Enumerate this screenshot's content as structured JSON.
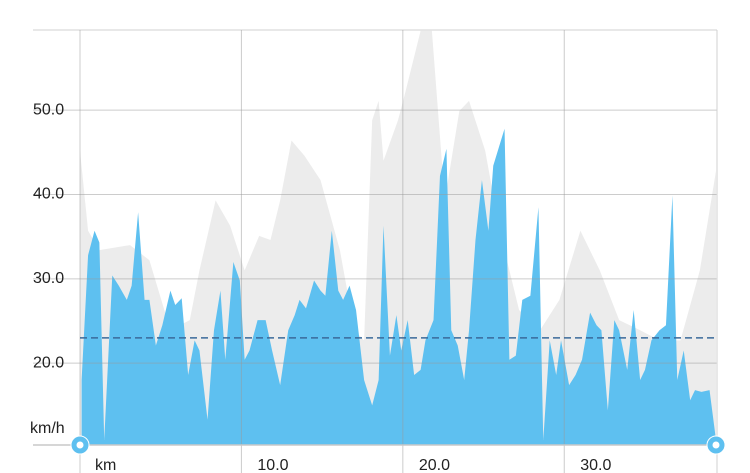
{
  "chart_data": {
    "type": "area",
    "x_label": "km",
    "y_label": "km/h",
    "xlim": [
      0,
      39.4
    ],
    "ylim": [
      10.3,
      59.5
    ],
    "xticks": [
      0,
      {
        "value": 10,
        "label": "10.0"
      },
      {
        "value": 20,
        "label": "20.0"
      },
      {
        "value": 30,
        "label": "30.0"
      }
    ],
    "yticks": [
      {
        "value": 20,
        "label": "20.0"
      },
      {
        "value": 30,
        "label": "30.0"
      },
      {
        "value": 40,
        "label": "40.0"
      },
      {
        "value": 50,
        "label": "50.0"
      }
    ],
    "grid": true,
    "average": 23.0,
    "average_color": "#3a6a9a",
    "series": [
      {
        "color": "#ececec",
        "x": [
          0,
          0.5,
          1.2,
          3.1,
          4.3,
          5.6,
          6.8,
          7.4,
          8.4,
          9.3,
          10.2,
          11.1,
          11.8,
          12.4,
          13.1,
          13.9,
          14.9,
          16.1,
          17.0,
          17.6,
          18.1,
          18.5,
          18.8,
          19.7,
          20.1,
          21.1,
          21.8,
          22.6,
          23.5,
          24.1,
          25.1,
          26.0,
          27.2,
          28.5,
          29.7,
          31.0,
          32.2,
          33.4,
          34.7,
          35.9,
          37.2,
          38.4,
          39.4
        ],
        "values": [
          45.2,
          35.7,
          33.4,
          34,
          32.2,
          23.9,
          25.1,
          31,
          39.3,
          36.3,
          31,
          35.1,
          34.6,
          39.3,
          46.4,
          44.6,
          41.7,
          33.4,
          23.9,
          22.7,
          48.8,
          51.1,
          44,
          48.8,
          51.7,
          59.4,
          59.4,
          39.3,
          49.9,
          51.1,
          45.2,
          35.7,
          26.3,
          23.9,
          27.5,
          35.7,
          31,
          25.1,
          23.9,
          22.7,
          22.7,
          31,
          42.8
        ]
      },
      {
        "color": "#5ec0f0",
        "x": [
          0.1,
          0.5,
          0.9,
          1.2,
          1.5,
          2.0,
          2.4,
          2.9,
          3.2,
          3.6,
          4.0,
          4.3,
          4.7,
          5.1,
          5.6,
          5.9,
          6.3,
          6.7,
          7.1,
          7.4,
          7.9,
          8.3,
          8.7,
          9.0,
          9.5,
          9.9,
          10.2,
          10.5,
          11.0,
          11.5,
          11.9,
          12.4,
          12.9,
          13.3,
          13.6,
          14.0,
          14.5,
          14.9,
          15.2,
          15.6,
          16.0,
          16.3,
          16.7,
          17.1,
          17.6,
          18.1,
          18.5,
          18.8,
          19.2,
          19.6,
          19.9,
          20.3,
          20.7,
          21.1,
          21.4,
          21.9,
          22.3,
          22.7,
          23.0,
          23.4,
          23.8,
          24.1,
          24.5,
          24.9,
          25.3,
          25.6,
          26.3,
          26.6,
          27.0,
          27.4,
          27.9,
          28.4,
          28.7,
          29.1,
          29.5,
          29.8,
          30.3,
          30.7,
          31.1,
          31.6,
          32.0,
          32.3,
          32.7,
          33.1,
          33.4,
          33.9,
          34.3,
          34.7,
          35.0,
          35.4,
          35.9,
          36.3,
          36.7,
          37.0,
          37.4,
          37.8,
          38.1,
          38.5,
          39.0,
          39.4
        ],
        "values": [
          18,
          32.8,
          35.7,
          34.3,
          10.9,
          30.4,
          29.2,
          27.5,
          29.2,
          37.9,
          27.5,
          27.5,
          22.1,
          24.5,
          28.6,
          26.9,
          27.7,
          18.6,
          22.7,
          21.5,
          13.3,
          23.9,
          28.6,
          20.4,
          32,
          29.8,
          20.4,
          21.5,
          25.1,
          25.1,
          21.5,
          17.4,
          23.9,
          25.7,
          27.5,
          26.5,
          29.8,
          28.6,
          28.0,
          35.7,
          28.6,
          27.5,
          29.2,
          26.3,
          18,
          15,
          18,
          36.3,
          20.9,
          25.7,
          21.5,
          25.1,
          18.6,
          19.2,
          22.7,
          25.1,
          42.2,
          45.4,
          23.9,
          22.1,
          18,
          23.9,
          34.6,
          41.7,
          35.7,
          43.4,
          47.8,
          20.4,
          20.9,
          27.5,
          28,
          38.5,
          10.9,
          22.7,
          18.6,
          22.7,
          17.4,
          18.6,
          20.4,
          26,
          24.5,
          23.9,
          14.4,
          25.1,
          23.9,
          19.2,
          26.3,
          18,
          19.2,
          22.7,
          23.9,
          24.5,
          39.9,
          18,
          21.5,
          15.6,
          16.8,
          16.6,
          16.8,
          10.9
        ]
      }
    ]
  }
}
